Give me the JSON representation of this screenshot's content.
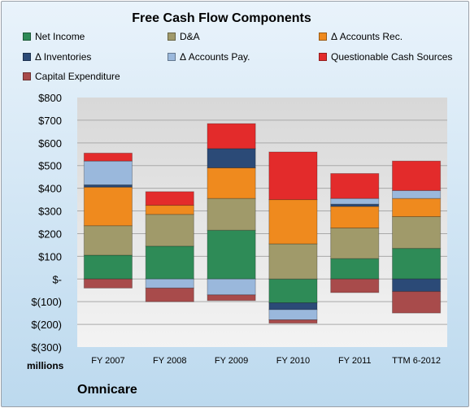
{
  "chart_data": {
    "type": "bar",
    "stacked": true,
    "title": "Free Cash Flow Components",
    "ylabel": "",
    "xlabel": "",
    "units_label": "millions",
    "footer_label": "Omnicare",
    "ylim": [
      -300,
      800
    ],
    "yticks": [
      {
        "value": 800,
        "label": "$800"
      },
      {
        "value": 700,
        "label": "$700"
      },
      {
        "value": 600,
        "label": "$600"
      },
      {
        "value": 500,
        "label": "$500"
      },
      {
        "value": 400,
        "label": "$400"
      },
      {
        "value": 300,
        "label": "$300"
      },
      {
        "value": 200,
        "label": "$200"
      },
      {
        "value": 100,
        "label": "$100"
      },
      {
        "value": 0,
        "label": "$-"
      },
      {
        "value": -100,
        "label": "$(100)"
      },
      {
        "value": -200,
        "label": "$(200)"
      },
      {
        "value": -300,
        "label": "$(300)"
      }
    ],
    "categories": [
      "FY 2007",
      "FY 2008",
      "FY 2009",
      "FY 2010",
      "FY 2011",
      "TTM 6-2012"
    ],
    "legend_position": "top",
    "series": [
      {
        "name": "Net Income",
        "color": "#2e8b57",
        "values": [
          105,
          145,
          215,
          -105,
          90,
          135
        ]
      },
      {
        "name": "D&A",
        "color": "#a09a6a",
        "values": [
          130,
          140,
          140,
          155,
          135,
          140
        ]
      },
      {
        "name": "Δ Accounts Rec.",
        "color": "#ef8a1e",
        "values": [
          170,
          40,
          135,
          195,
          95,
          80
        ]
      },
      {
        "name": "Δ Inventories",
        "color": "#2b4a77",
        "values": [
          10,
          0,
          85,
          -30,
          10,
          -55
        ]
      },
      {
        "name": "Δ Accounts Pay.",
        "color": "#9ab8dc",
        "values": [
          105,
          -40,
          -70,
          -45,
          25,
          35
        ]
      },
      {
        "name": "Questionable Cash Sources",
        "color": "#e32b2b",
        "values": [
          35,
          60,
          110,
          210,
          110,
          130
        ]
      },
      {
        "name": "Capital Expenditure",
        "color": "#a84b4b",
        "values": [
          -40,
          -60,
          -25,
          -15,
          -60,
          -95
        ]
      }
    ]
  }
}
